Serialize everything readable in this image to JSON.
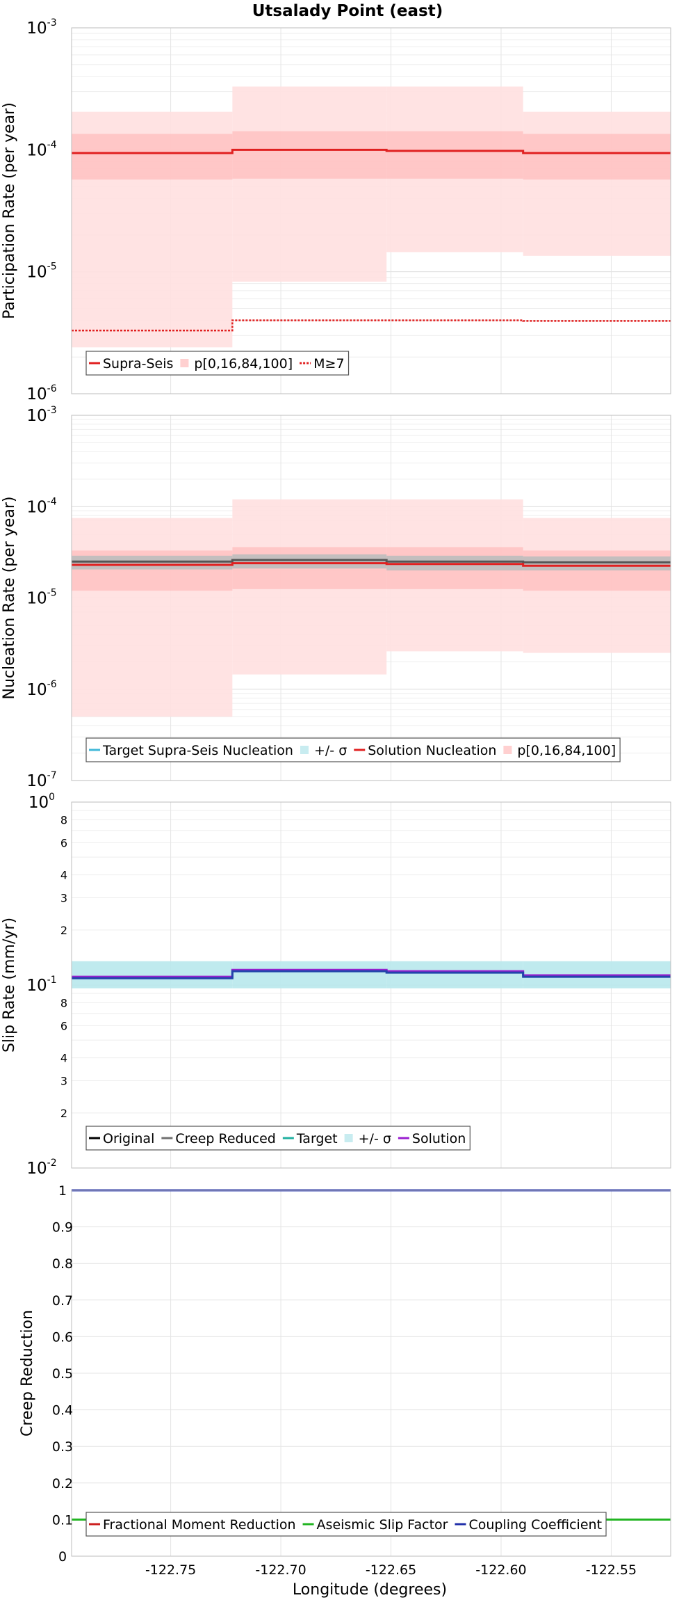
{
  "chart_data": {
    "title": "Utsalady Point (east)",
    "xlabel": "Longitude (degrees)",
    "xlim": [
      -122.795,
      -122.523
    ],
    "x_ticks": [
      -122.75,
      -122.7,
      -122.65,
      -122.6,
      -122.55
    ],
    "x_tick_labels": [
      "-122.75",
      "-122.70",
      "-122.65",
      "-122.60",
      "-122.55"
    ],
    "x_segments": [
      [
        -122.795,
        -122.722
      ],
      [
        -122.722,
        -122.652
      ],
      [
        -122.652,
        -122.59
      ],
      [
        -122.59,
        -122.523
      ]
    ],
    "panels": [
      {
        "type": "line",
        "yscale": "log",
        "ylabel": "Participation Rate (per year)",
        "ylim": [
          1e-06,
          0.001
        ],
        "y_major_exponents": [
          -3,
          -4,
          -5,
          -6
        ],
        "bands": [
          {
            "role": "p0_100",
            "color": "#ffe0e0",
            "low": [
              2.4e-06,
              8.3e-06,
              1.45e-05,
              1.35e-05
            ],
            "high": [
              0.000205,
              0.00033,
              0.00033,
              0.000205
            ]
          },
          {
            "role": "p16_84",
            "color": "#ffc3c3",
            "low": [
              5.7e-05,
              5.8e-05,
              5.8e-05,
              5.7e-05
            ],
            "high": [
              0.000135,
              0.000142,
              0.000142,
              0.000135
            ]
          }
        ],
        "series": [
          {
            "name": "Supra-Seis",
            "color": "#e02020",
            "style": "solid",
            "values": [
              9.4e-05,
              0.0001,
              9.8e-05,
              9.4e-05
            ]
          },
          {
            "name": "M≥7",
            "color": "#e02020",
            "style": "dotted",
            "values": [
              3.3e-06,
              4e-06,
              4e-06,
              3.95e-06
            ]
          }
        ],
        "legend": [
          {
            "label": "Supra-Seis",
            "kind": "line",
            "color": "#e02020"
          },
          {
            "label": "p[0,16,84,100]",
            "kind": "band",
            "color": "#ffd0d0"
          },
          {
            "label": "M≥7",
            "kind": "dotted",
            "color": "#e02020"
          }
        ]
      },
      {
        "type": "line",
        "yscale": "log",
        "ylabel": "Nucleation Rate (per year)",
        "ylim": [
          1e-07,
          0.001
        ],
        "y_major_exponents": [
          -3,
          -4,
          -5,
          -6,
          -7
        ],
        "bands": [
          {
            "role": "p0_100",
            "color": "#ffe0e0",
            "low": [
              5e-07,
              1.45e-06,
              2.6e-06,
              2.5e-06
            ],
            "high": [
              7.5e-05,
              0.00012,
              0.00012,
              7.5e-05
            ]
          },
          {
            "role": "p16_84",
            "color": "#ffc3c3",
            "low": [
              1.2e-05,
              1.25e-05,
              1.25e-05,
              1.2e-05
            ],
            "high": [
              3.3e-05,
              3.6e-05,
              3.6e-05,
              3.3e-05
            ]
          },
          {
            "role": "target_sigma",
            "color": "#bcbcbc",
            "low": [
              2.05e-05,
              2.1e-05,
              2e-05,
              2e-05
            ],
            "high": [
              2.9e-05,
              3e-05,
              2.9e-05,
              2.85e-05
            ]
          }
        ],
        "series": [
          {
            "name": "Target Supra-Seis Nucleation",
            "color": "#555555",
            "style": "solid",
            "values": [
              2.5e-05,
              2.6e-05,
              2.5e-05,
              2.45e-05
            ]
          },
          {
            "name": "Solution Nucleation",
            "color": "#e02020",
            "style": "solid",
            "values": [
              2.3e-05,
              2.4e-05,
              2.35e-05,
              2.25e-05
            ]
          }
        ],
        "legend": [
          {
            "label": "Target Supra-Seis Nucleation",
            "kind": "line",
            "color": "#40b8d8"
          },
          {
            "label": "+/- σ",
            "kind": "band",
            "color": "#c8ecf0"
          },
          {
            "label": "Solution Nucleation",
            "kind": "line",
            "color": "#e02020"
          },
          {
            "label": "p[0,16,84,100]",
            "kind": "band",
            "color": "#ffd0d0"
          }
        ]
      },
      {
        "type": "line",
        "yscale": "log",
        "ylabel": "Slip Rate (mm/yr)",
        "ylim": [
          0.01,
          1
        ],
        "y_major_exponents": [
          0,
          -1,
          -2
        ],
        "y_minor_labels": [
          2,
          3,
          4,
          6,
          8
        ],
        "bands": [
          {
            "role": "target_sigma",
            "color": "#b8e8ec",
            "low": [
              0.096,
              0.096,
              0.096,
              0.096
            ],
            "high": [
              0.135,
              0.135,
              0.135,
              0.135
            ]
          }
        ],
        "series": [
          {
            "name": "Solution",
            "color": "#9a1fd0",
            "style": "solid",
            "values": [
              0.111,
              0.121,
              0.119,
              0.113
            ]
          },
          {
            "name": "Original",
            "color": "#2244aa",
            "style": "solid",
            "values": [
              0.109,
              0.119,
              0.117,
              0.111
            ]
          }
        ],
        "legend": [
          {
            "label": "Original",
            "kind": "line",
            "color": "#000000"
          },
          {
            "label": "Creep Reduced",
            "kind": "line",
            "color": "#707070"
          },
          {
            "label": "Target",
            "kind": "line",
            "color": "#20b0a0"
          },
          {
            "label": "+/- σ",
            "kind": "band",
            "color": "#c8ecf0"
          },
          {
            "label": "Solution",
            "kind": "line",
            "color": "#9a1fd0"
          }
        ]
      },
      {
        "type": "line",
        "yscale": "linear",
        "ylabel": "Creep Reduction",
        "ylim": [
          0,
          1
        ],
        "y_ticks": [
          0,
          0.1,
          0.2,
          0.3,
          0.4,
          0.5,
          0.6,
          0.7,
          0.8,
          0.9,
          1
        ],
        "y_tick_labels": [
          "0",
          "0.1",
          "0.2",
          "0.3",
          "0.4",
          "0.5",
          "0.6",
          "0.7",
          "0.8",
          "0.9",
          "1"
        ],
        "bands": [],
        "series": [
          {
            "name": "Aseismic Slip Factor",
            "color": "#22b422",
            "style": "solid",
            "values": [
              0.1,
              0.1,
              0.1,
              0.1
            ]
          },
          {
            "name": "Coupling Coefficient",
            "color": "#2230aa",
            "style": "solid",
            "values": [
              1,
              1,
              1,
              1
            ]
          }
        ],
        "legend": [
          {
            "label": "Fractional Moment Reduction",
            "kind": "line",
            "color": "#cc2020"
          },
          {
            "label": "Aseismic Slip Factor",
            "kind": "line",
            "color": "#22b422"
          },
          {
            "label": "Coupling Coefficient",
            "kind": "line",
            "color": "#2230aa"
          }
        ]
      }
    ]
  }
}
